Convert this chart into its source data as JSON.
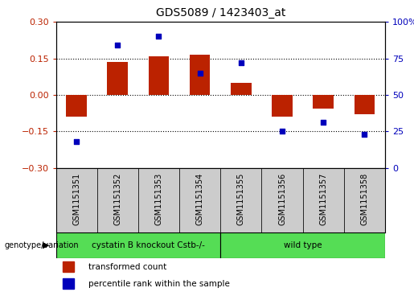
{
  "title": "GDS5089 / 1423403_at",
  "samples": [
    "GSM1151351",
    "GSM1151352",
    "GSM1151353",
    "GSM1151354",
    "GSM1151355",
    "GSM1151356",
    "GSM1151357",
    "GSM1151358"
  ],
  "transformed_count": [
    -0.09,
    0.135,
    0.16,
    0.165,
    0.05,
    -0.09,
    -0.055,
    -0.08
  ],
  "percentile_rank": [
    18,
    84,
    90,
    65,
    72,
    25,
    31,
    23
  ],
  "group1_label": "cystatin B knockout Cstb-/-",
  "group2_label": "wild type",
  "group1_count": 4,
  "group2_count": 4,
  "genotype_label": "genotype/variation",
  "legend1": "transformed count",
  "legend2": "percentile rank within the sample",
  "bar_color": "#bb2200",
  "dot_color": "#0000bb",
  "group_color": "#55dd55",
  "sample_box_color": "#cccccc",
  "ylim_left": [
    -0.3,
    0.3
  ],
  "ylim_right": [
    0,
    100
  ],
  "yticks_left": [
    -0.3,
    -0.15,
    0.0,
    0.15,
    0.3
  ],
  "yticks_right": [
    0,
    25,
    50,
    75,
    100
  ],
  "background_color": "#ffffff"
}
